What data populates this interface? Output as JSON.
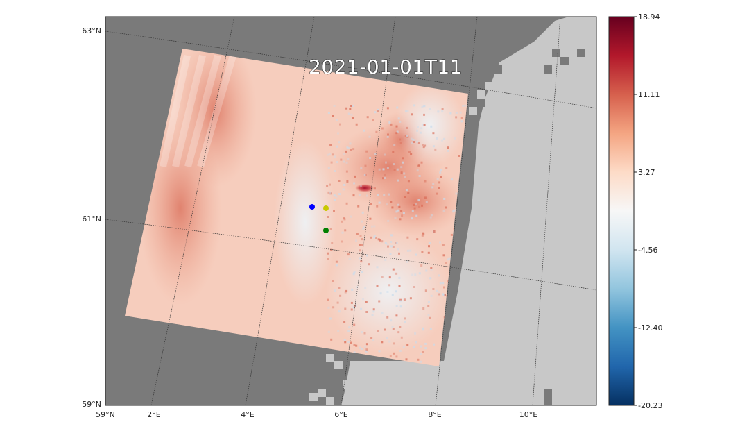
{
  "title": "2021-01-01T11",
  "map": {
    "lat_ticks": [
      "63°N",
      "61°N",
      "59°N"
    ],
    "lon_ticks": [
      "59°N",
      "2°E",
      "4°E",
      "6°E",
      "8°E",
      "10°E"
    ],
    "colors": {
      "sea_mask": "#7a7a7a",
      "land_mask": "#c8c8c8",
      "field_base": "#f6cdbd",
      "field_warm": "#d96a55",
      "field_cold": "#c9dcec",
      "hotspot": "#a3102c",
      "graticule": "#333333"
    }
  },
  "points": [
    {
      "name": "blue point",
      "color": "#0000ff"
    },
    {
      "name": "yellow point",
      "color": "#c8c800"
    },
    {
      "name": "green point",
      "color": "#007f00"
    }
  ],
  "colorbar": {
    "ticks": [
      "18.94",
      "11.11",
      "3.27",
      "-4.56",
      "-12.40",
      "-20.23"
    ],
    "colormap": "RdBu_r",
    "stops": [
      "#67001f",
      "#b2182b",
      "#d6604d",
      "#f4a582",
      "#fddbc7",
      "#f7f7f7",
      "#d1e5f0",
      "#92c5de",
      "#4393c3",
      "#2166ac",
      "#053061"
    ]
  }
}
